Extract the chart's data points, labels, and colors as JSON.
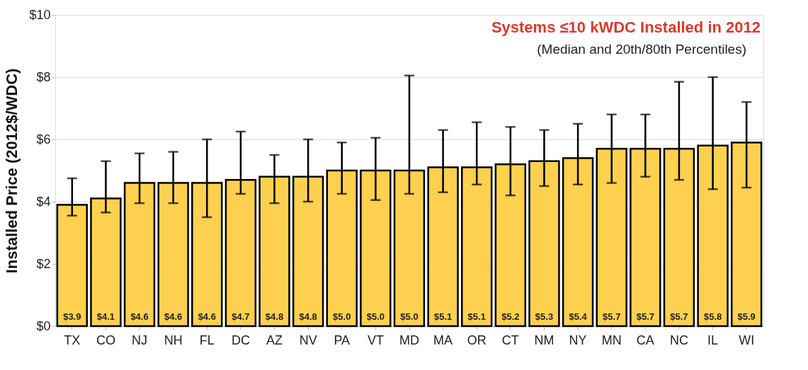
{
  "chart_data": {
    "type": "bar",
    "title": "Systems ≤10 kWDC Installed in 2012",
    "subtitle": "(Median and 20th/80th Percentiles)",
    "ylabel": "Installed Price (2012$/WDC)",
    "categories": [
      "TX",
      "CO",
      "NJ",
      "NH",
      "FL",
      "DC",
      "AZ",
      "NV",
      "PA",
      "VT",
      "MD",
      "MA",
      "OR",
      "CT",
      "NM",
      "NY",
      "MN",
      "CA",
      "NC",
      "IL",
      "WI"
    ],
    "values": [
      3.9,
      4.1,
      4.6,
      4.6,
      4.6,
      4.7,
      4.8,
      4.8,
      5.0,
      5.0,
      5.0,
      5.1,
      5.1,
      5.2,
      5.3,
      5.4,
      5.7,
      5.7,
      5.7,
      5.8,
      5.9
    ],
    "value_labels": [
      "$3.9",
      "$4.1",
      "$4.6",
      "$4.6",
      "$4.6",
      "$4.7",
      "$4.8",
      "$4.8",
      "$5.0",
      "$5.0",
      "$5.0",
      "$5.1",
      "$5.1",
      "$5.2",
      "$5.3",
      "$5.4",
      "$5.7",
      "$5.7",
      "$5.7",
      "$5.8",
      "$5.9"
    ],
    "errors": [
      [
        3.55,
        4.75
      ],
      [
        3.65,
        5.3
      ],
      [
        3.95,
        5.55
      ],
      [
        3.95,
        5.6
      ],
      [
        3.5,
        6.0
      ],
      [
        4.25,
        6.25
      ],
      [
        3.95,
        5.5
      ],
      [
        4.0,
        6.0
      ],
      [
        4.25,
        5.9
      ],
      [
        4.05,
        6.05
      ],
      [
        4.25,
        8.05
      ],
      [
        4.3,
        6.3
      ],
      [
        4.55,
        6.55
      ],
      [
        4.2,
        6.4
      ],
      [
        4.5,
        6.3
      ],
      [
        4.55,
        6.5
      ],
      [
        4.6,
        6.8
      ],
      [
        4.8,
        6.8
      ],
      [
        4.7,
        7.85
      ],
      [
        4.4,
        8.0
      ],
      [
        4.45,
        7.2
      ]
    ],
    "color": "#fdd04f",
    "ylim": [
      0,
      10
    ],
    "yticks": [
      {
        "value": 0,
        "label": "$0"
      },
      {
        "value": 2,
        "label": "$2"
      },
      {
        "value": 4,
        "label": "$4"
      },
      {
        "value": 6,
        "label": "$6"
      },
      {
        "value": 8,
        "label": "$8"
      },
      {
        "value": 10,
        "label": "$10"
      }
    ],
    "grid": "y"
  }
}
